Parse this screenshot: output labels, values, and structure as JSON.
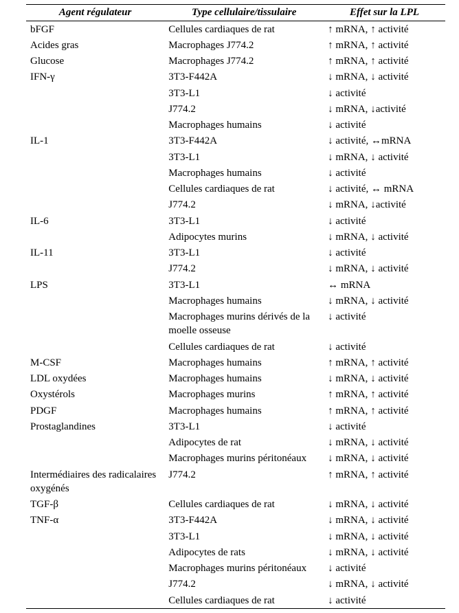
{
  "table": {
    "headers": {
      "col1": "Agent régulateur",
      "col2": "Type cellulaire/tissulaire",
      "col3": "Effet sur la LPL"
    },
    "arrows": {
      "up": "↑",
      "down": "↓",
      "lr": "↔"
    },
    "rows": [
      {
        "agent": "bFGF",
        "cell": "Cellules cardiaques de rat",
        "effect": "{up} mRNA, {up} activité"
      },
      {
        "agent": "Acides gras",
        "cell": "Macrophages J774.2",
        "effect": "{up} mRNA, {up} activité"
      },
      {
        "agent": "Glucose",
        "cell": "Macrophages J774.2",
        "effect": "{up} mRNA, {up} activité"
      },
      {
        "agent": "IFN-γ",
        "cell": "3T3-F442A",
        "effect": "{down} mRNA, {down} activité"
      },
      {
        "agent": "",
        "cell": "3T3-L1",
        "effect": "{down} activité"
      },
      {
        "agent": "",
        "cell": "J774.2",
        "effect": "{down} mRNA, {down}activité"
      },
      {
        "agent": "",
        "cell": "Macrophages humains",
        "effect": "{down} activité"
      },
      {
        "agent": "IL-1",
        "cell": "3T3-F442A",
        "effect": "{down} activité, {lr}mRNA"
      },
      {
        "agent": "",
        "cell": "3T3-L1",
        "effect": "{down} mRNA, {down} activité"
      },
      {
        "agent": "",
        "cell": "Macrophages humains",
        "effect": "{down} activité"
      },
      {
        "agent": "",
        "cell": "Cellules cardiaques de rat",
        "effect": "{down} activité, {lr} mRNA"
      },
      {
        "agent": "",
        "cell": "J774.2",
        "effect": "{down} mRNA, {down}activité"
      },
      {
        "agent": "IL-6",
        "cell": "3T3-L1",
        "effect": "{down} activité"
      },
      {
        "agent": "",
        "cell": "Adipocytes murins",
        "effect": "{down} mRNA, {down} activité"
      },
      {
        "agent": "IL-11",
        "cell": "3T3-L1",
        "effect": "{down} activité"
      },
      {
        "agent": "",
        "cell": "J774.2",
        "effect": "{down} mRNA, {down} activité"
      },
      {
        "agent": "LPS",
        "cell": "3T3-L1",
        "effect": "{lr} mRNA"
      },
      {
        "agent": "",
        "cell": "Macrophages humains",
        "effect": "{down} mRNA, {down} activité"
      },
      {
        "agent": "",
        "cell": "Macrophages murins dérivés de la moelle osseuse",
        "effect": "{down} activité"
      },
      {
        "agent": "",
        "cell": "Cellules cardiaques de rat",
        "effect": "{down} activité"
      },
      {
        "agent": "M-CSF",
        "cell": "Macrophages humains",
        "effect": "{up} mRNA, {up} activité"
      },
      {
        "agent": "LDL oxydées",
        "cell": "Macrophages humains",
        "effect": "{down} mRNA, {down} activité"
      },
      {
        "agent": "Oxystérols",
        "cell": "Macrophages murins",
        "effect": "{up} mRNA, {up} activité"
      },
      {
        "agent": "PDGF",
        "cell": "Macrophages humains",
        "effect": "{up} mRNA, {up} activité"
      },
      {
        "agent": "Prostaglandines",
        "cell": "3T3-L1",
        "effect": "{down} activité"
      },
      {
        "agent": "",
        "cell": "Adipocytes de rat",
        "effect": "{down} mRNA, {down} activité"
      },
      {
        "agent": "",
        "cell": "Macrophages murins péritonéaux",
        "effect": "{down} mRNA, {down} activité"
      },
      {
        "agent": "Intermédiaires des radicalaires oxygénés",
        "cell": "J774.2",
        "effect": "{up} mRNA, {up} activité"
      },
      {
        "agent": "TGF-β",
        "cell": "Cellules cardiaques de rat",
        "effect": "{down} mRNA, {down} activité"
      },
      {
        "agent": "TNF-α",
        "cell": "3T3-F442A",
        "effect": "{down} mRNA, {down} activité"
      },
      {
        "agent": "",
        "cell": "3T3-L1",
        "effect": "{down} mRNA, {down} activité"
      },
      {
        "agent": "",
        "cell": "Adipocytes de rats",
        "effect": "{down} mRNA, {down} activité"
      },
      {
        "agent": "",
        "cell": "Macrophages murins péritonéaux",
        "effect": "{down} activité"
      },
      {
        "agent": "",
        "cell": "J774.2",
        "effect": "{down} mRNA, {down} activité"
      },
      {
        "agent": "",
        "cell": "Cellules cardiaques de rat",
        "effect": "{down} activité"
      }
    ]
  }
}
